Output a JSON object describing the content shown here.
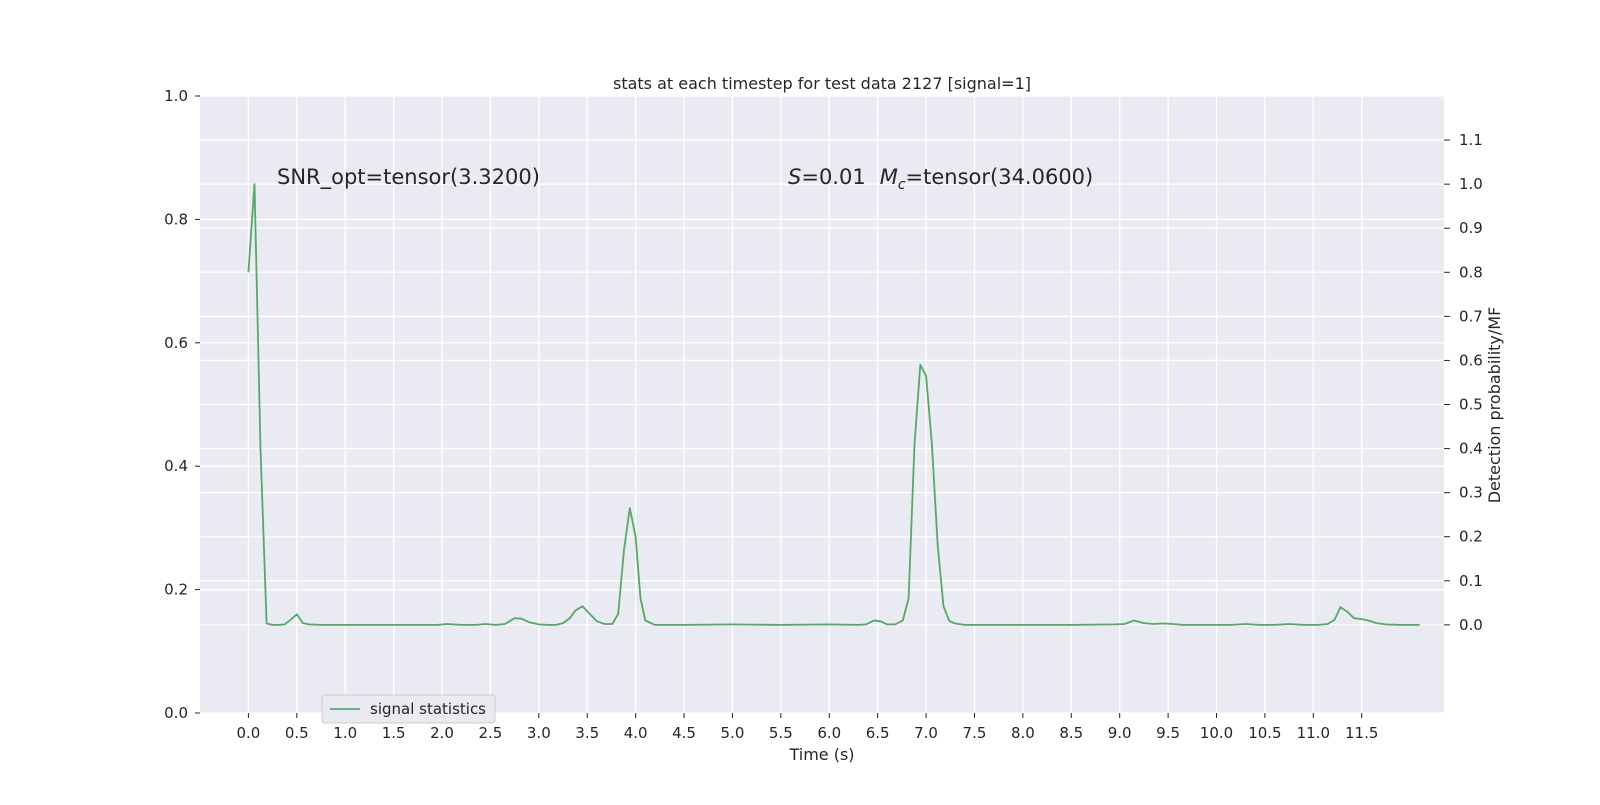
{
  "chart_data": {
    "type": "line",
    "title": "stats at each timestep for test data 2127 [signal=1]",
    "xlabel": "Time (s)",
    "ylabel_right": "Detection probability/MF",
    "xlim": [
      -0.5,
      12.35
    ],
    "ylim_left": [
      0.0,
      1.0
    ],
    "ylim_right": [
      -0.2,
      1.2
    ],
    "xticks": [
      "0.0",
      "0.5",
      "1.0",
      "1.5",
      "2.0",
      "2.5",
      "3.0",
      "3.5",
      "4.0",
      "4.5",
      "5.0",
      "5.5",
      "6.0",
      "6.5",
      "7.0",
      "7.5",
      "8.0",
      "8.5",
      "9.0",
      "9.5",
      "10.0",
      "10.5",
      "11.0",
      "11.5"
    ],
    "yticks_left": [
      "0.0",
      "0.2",
      "0.4",
      "0.6",
      "0.8",
      "1.0"
    ],
    "yticks_right": [
      "0.0",
      "0.1",
      "0.2",
      "0.3",
      "0.4",
      "0.5",
      "0.6",
      "0.7",
      "0.8",
      "0.9",
      "1.0",
      "1.1"
    ],
    "grid": true,
    "legend_position": "lower-left",
    "annotations": {
      "snr": "SNR_opt=tensor(3.3200)",
      "s_italic": "S",
      "s_value": "=0.01",
      "m_italic": "M",
      "m_sub": "c",
      "m_value": "=tensor(34.0600)"
    },
    "series": [
      {
        "name": "signal statistics",
        "color": "#55a868",
        "axis": "right",
        "points": [
          [
            0.0,
            0.8
          ],
          [
            0.0625,
            1.0
          ],
          [
            0.125,
            0.4
          ],
          [
            0.1875,
            0.003
          ],
          [
            0.25,
            0.0
          ],
          [
            0.3125,
            0.0
          ],
          [
            0.375,
            0.001
          ],
          [
            0.4375,
            0.012
          ],
          [
            0.5,
            0.024
          ],
          [
            0.5625,
            0.004
          ],
          [
            0.625,
            0.001
          ],
          [
            0.75,
            0.0
          ],
          [
            1.0,
            0.0
          ],
          [
            1.5,
            0.0
          ],
          [
            1.95,
            0.0
          ],
          [
            2.05,
            0.002
          ],
          [
            2.2,
            0.0
          ],
          [
            2.35,
            0.0
          ],
          [
            2.45,
            0.002
          ],
          [
            2.55,
            0.0
          ],
          [
            2.65,
            0.002
          ],
          [
            2.75,
            0.015
          ],
          [
            2.82,
            0.014
          ],
          [
            2.9,
            0.006
          ],
          [
            3.0,
            0.001
          ],
          [
            3.1,
            0.0
          ],
          [
            3.18,
            0.0
          ],
          [
            3.25,
            0.004
          ],
          [
            3.32,
            0.015
          ],
          [
            3.38,
            0.033
          ],
          [
            3.45,
            0.042
          ],
          [
            3.52,
            0.026
          ],
          [
            3.6,
            0.008
          ],
          [
            3.68,
            0.002
          ],
          [
            3.76,
            0.002
          ],
          [
            3.82,
            0.025
          ],
          [
            3.88,
            0.17
          ],
          [
            3.94,
            0.265
          ],
          [
            4.0,
            0.2
          ],
          [
            4.05,
            0.06
          ],
          [
            4.1,
            0.01
          ],
          [
            4.2,
            0.0
          ],
          [
            4.5,
            0.0
          ],
          [
            5.0,
            0.001
          ],
          [
            5.5,
            0.0
          ],
          [
            6.0,
            0.001
          ],
          [
            6.3,
            0.0
          ],
          [
            6.38,
            0.001
          ],
          [
            6.46,
            0.01
          ],
          [
            6.53,
            0.008
          ],
          [
            6.6,
            0.001
          ],
          [
            6.68,
            0.001
          ],
          [
            6.76,
            0.01
          ],
          [
            6.82,
            0.06
          ],
          [
            6.88,
            0.41
          ],
          [
            6.94,
            0.59
          ],
          [
            7.0,
            0.565
          ],
          [
            7.06,
            0.41
          ],
          [
            7.12,
            0.18
          ],
          [
            7.18,
            0.042
          ],
          [
            7.24,
            0.009
          ],
          [
            7.3,
            0.003
          ],
          [
            7.4,
            0.0
          ],
          [
            7.6,
            0.0
          ],
          [
            8.0,
            0.0
          ],
          [
            8.5,
            0.0
          ],
          [
            8.95,
            0.001
          ],
          [
            9.05,
            0.002
          ],
          [
            9.15,
            0.01
          ],
          [
            9.25,
            0.004
          ],
          [
            9.35,
            0.002
          ],
          [
            9.45,
            0.003
          ],
          [
            9.55,
            0.002
          ],
          [
            9.65,
            0.0
          ],
          [
            10.0,
            0.0
          ],
          [
            10.15,
            0.0
          ],
          [
            10.3,
            0.002
          ],
          [
            10.45,
            0.0
          ],
          [
            10.6,
            0.0
          ],
          [
            10.75,
            0.002
          ],
          [
            10.9,
            0.0
          ],
          [
            11.05,
            0.0
          ],
          [
            11.15,
            0.002
          ],
          [
            11.22,
            0.012
          ],
          [
            11.28,
            0.04
          ],
          [
            11.35,
            0.03
          ],
          [
            11.42,
            0.015
          ],
          [
            11.5,
            0.013
          ],
          [
            11.57,
            0.01
          ],
          [
            11.65,
            0.004
          ],
          [
            11.75,
            0.001
          ],
          [
            11.9,
            0.0
          ],
          [
            12.1,
            0.0
          ]
        ]
      }
    ]
  }
}
